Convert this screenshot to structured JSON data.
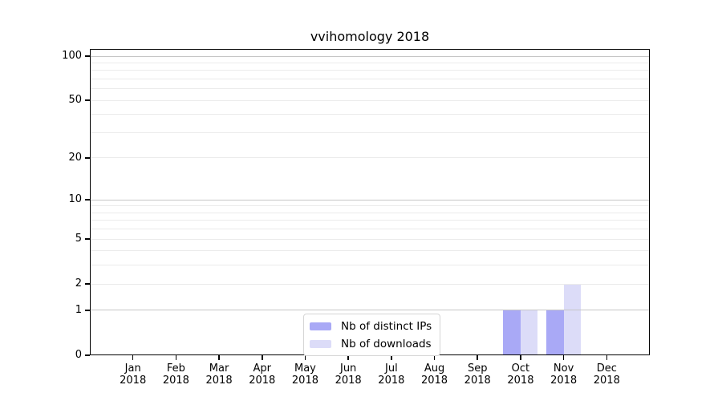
{
  "chart_data": {
    "type": "bar",
    "title": "vvihomology 2018",
    "categories": [
      "Jan",
      "Feb",
      "Mar",
      "Apr",
      "May",
      "Jun",
      "Jul",
      "Aug",
      "Sep",
      "Oct",
      "Nov",
      "Dec"
    ],
    "x_tick_year": "2018",
    "series": [
      {
        "name": "Nb of distinct IPs",
        "color": "#a9a9f6",
        "values": [
          0,
          0,
          0,
          0,
          0,
          0,
          0,
          0,
          0,
          1,
          1,
          0
        ]
      },
      {
        "name": "Nb of downloads",
        "color": "#dcdcf8",
        "values": [
          0,
          0,
          0,
          0,
          0,
          0,
          0,
          0,
          0,
          1,
          2,
          0
        ]
      }
    ],
    "y_axis": {
      "scale": "symlog",
      "tick_values": [
        0,
        1,
        2,
        5,
        10,
        20,
        50,
        100
      ],
      "major_gridlines": [
        1,
        10,
        100
      ],
      "minor_gridlines": [
        2,
        3,
        4,
        5,
        6,
        7,
        8,
        9,
        20,
        30,
        40,
        50,
        60,
        70,
        80,
        90
      ],
      "ylim": [
        0,
        112
      ]
    },
    "grid": "on",
    "legend_position": "bottom-center",
    "colors": {
      "major_grid": "#c6c6c6",
      "minor_grid": "#ebebeb",
      "axis": "#000000",
      "text": "#000000",
      "legend_border": "#d5d5d5",
      "background": "#ffffff"
    }
  }
}
